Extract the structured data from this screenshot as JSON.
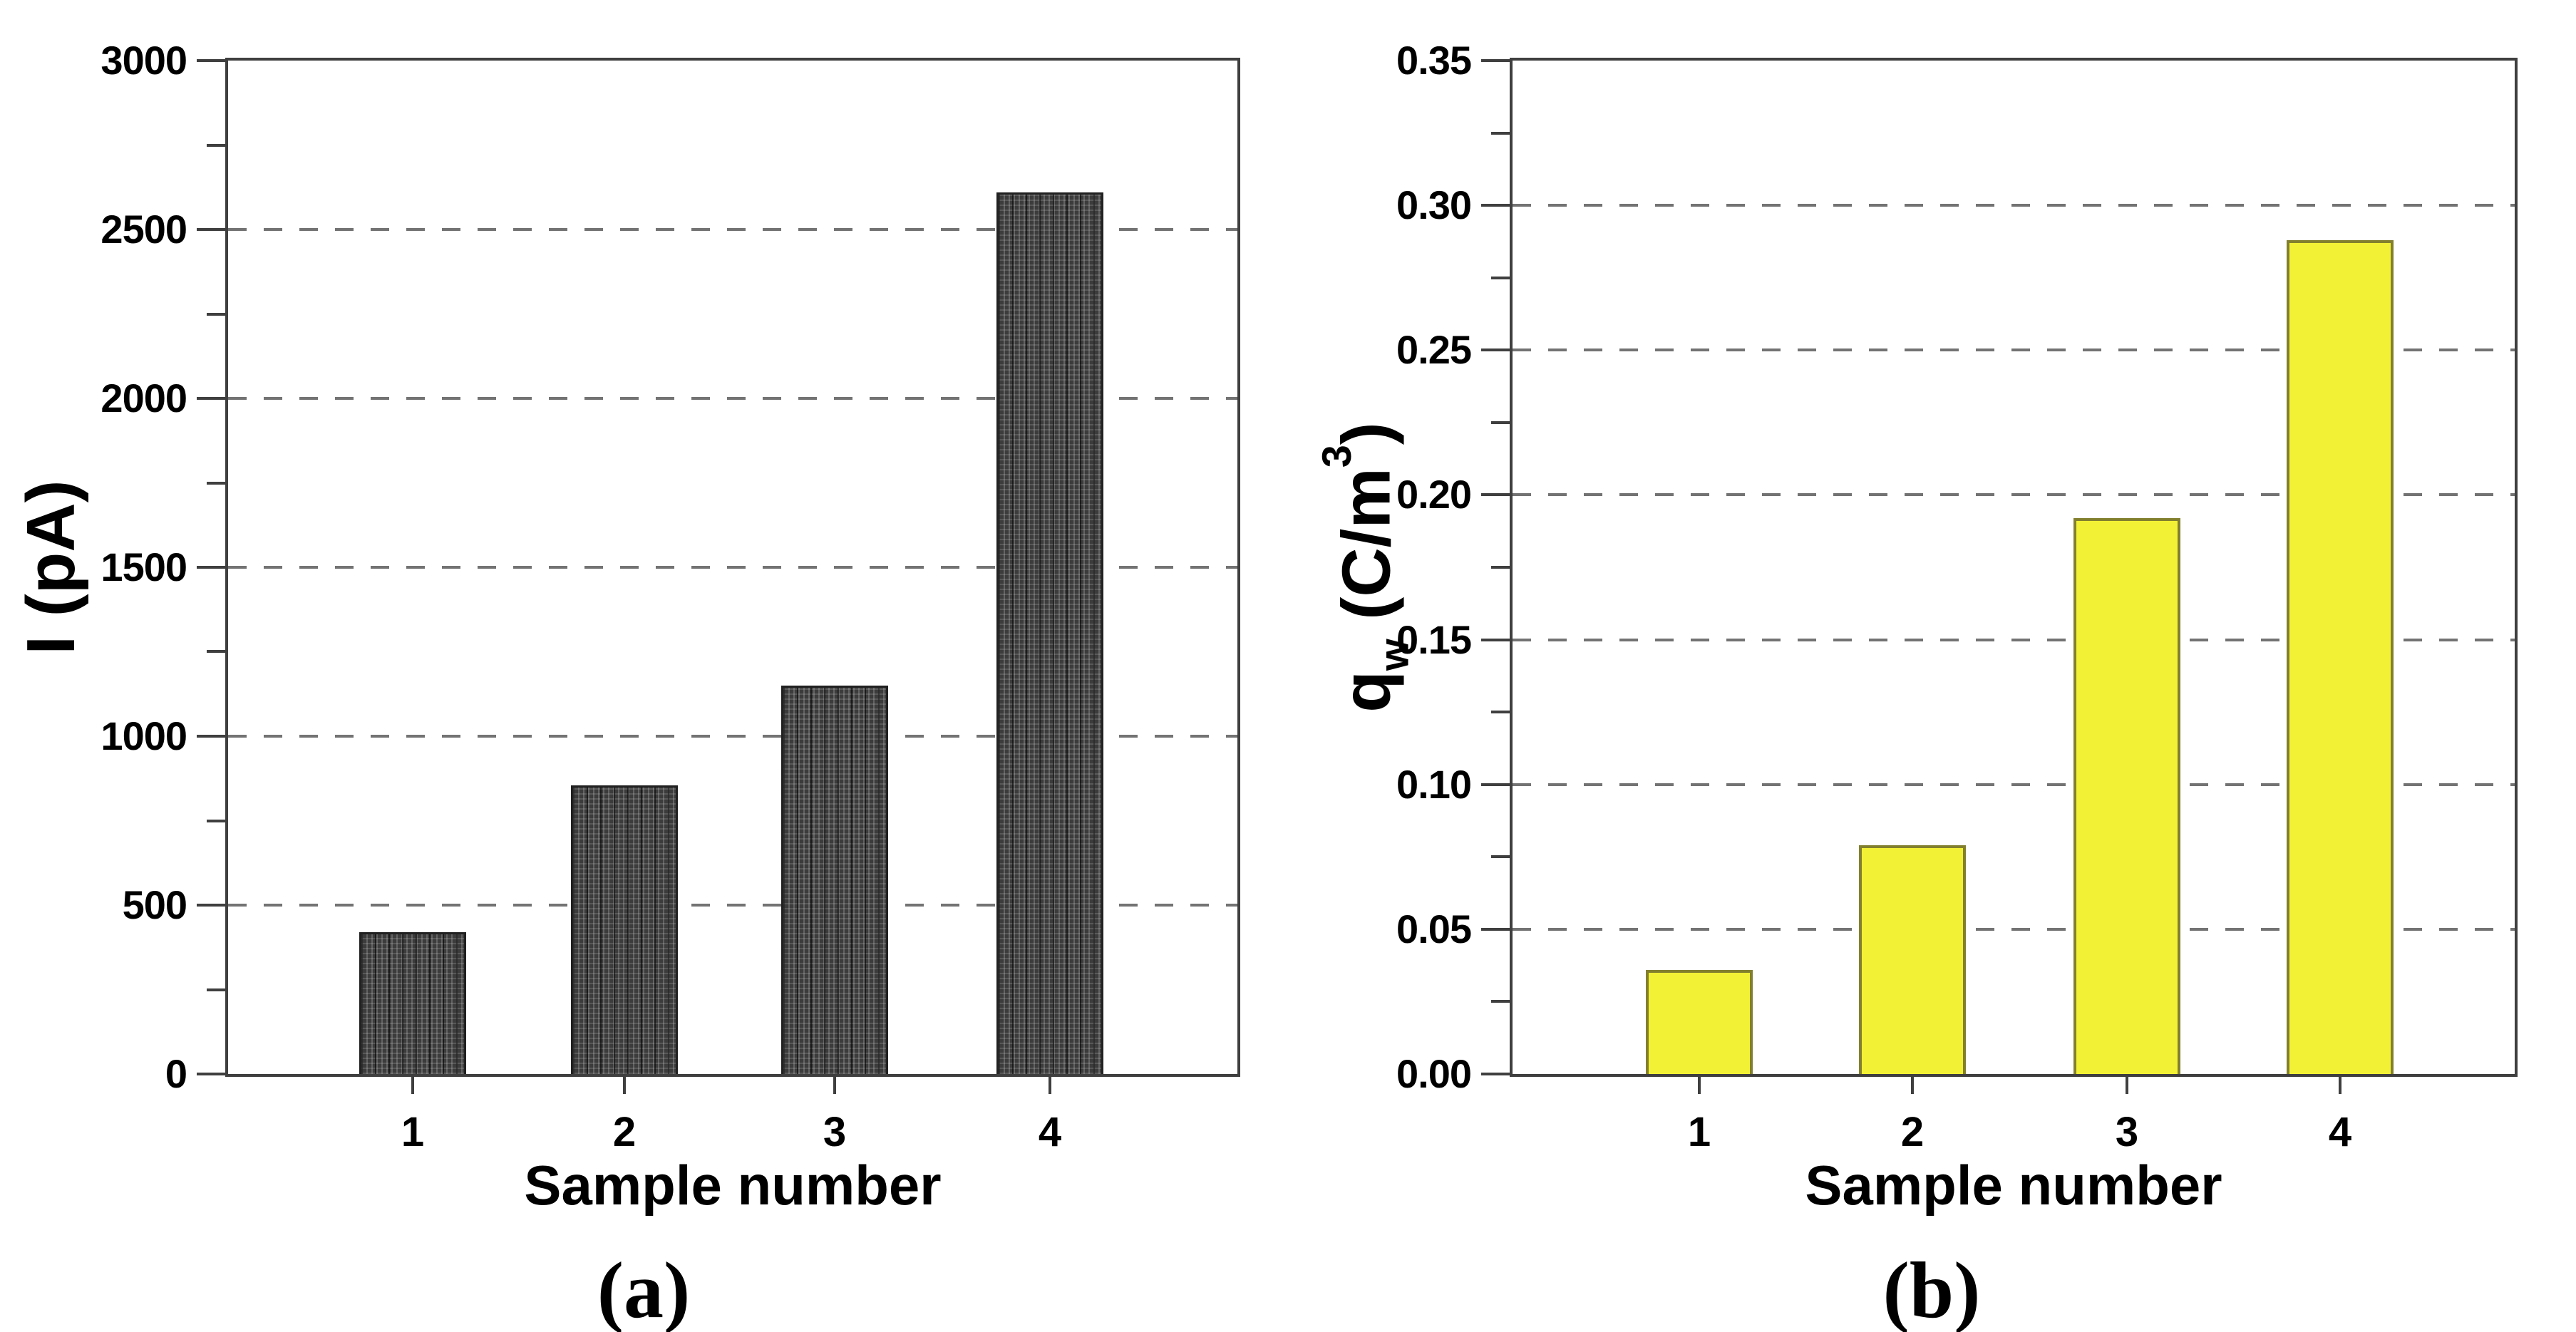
{
  "figure": {
    "background": "#ffffff",
    "panel_count": 2
  },
  "chart_data": [
    {
      "type": "bar",
      "panel": "a",
      "caption": "(a)",
      "categories": [
        "1",
        "2",
        "3",
        "4"
      ],
      "values": [
        420,
        855,
        1150,
        2610
      ],
      "xlabel": "Sample number",
      "ylabel": "I (pA)",
      "ylim": [
        0,
        3000
      ],
      "ytick_step": 500,
      "ytick_labels": [
        "0",
        "500",
        "1000",
        "1500",
        "2000",
        "2500",
        "3000"
      ],
      "minor_ticks_between_majors": 1,
      "grid": "horizontal dashed",
      "legend": "none",
      "bar_fill": "#3c3c3c",
      "bar_border": "#212121",
      "bar_texture": "fine light dotted grid on dark gray",
      "axis_color": "#3f3f3f",
      "gridline_color": "#737373",
      "text_color": "#000000"
    },
    {
      "type": "bar",
      "panel": "b",
      "caption": "(b)",
      "categories": [
        "1",
        "2",
        "3",
        "4"
      ],
      "values": [
        0.036,
        0.079,
        0.192,
        0.288
      ],
      "xlabel": "Sample number",
      "ylabel": "qw (C/m3)",
      "ylabel_parts": {
        "base": "q",
        "subscript": "w",
        "unit_open": " (C/m",
        "superscript": "3",
        "unit_close": ")"
      },
      "ylim": [
        0,
        0.35
      ],
      "ytick_step": 0.05,
      "ytick_labels": [
        "0.00",
        "0.05",
        "0.10",
        "0.15",
        "0.20",
        "0.25",
        "0.30",
        "0.35"
      ],
      "minor_ticks_between_majors": 1,
      "grid": "horizontal dashed",
      "legend": "none",
      "bar_fill": "#f3f135",
      "bar_border": "#82802e",
      "axis_color": "#3f3f3f",
      "gridline_color": "#737373",
      "text_color": "#000000"
    }
  ]
}
